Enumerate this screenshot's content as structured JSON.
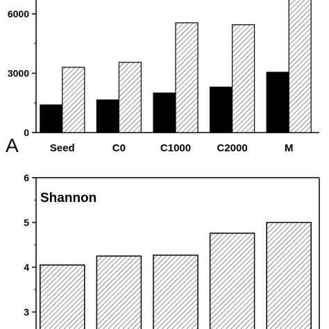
{
  "chart_data": [
    {
      "type": "bar",
      "panel_label": "A",
      "title": "",
      "xlabel": "",
      "ylabel": "",
      "categories": [
        "Seed",
        "C0",
        "C1000",
        "C2000",
        "M"
      ],
      "ylim": [
        0,
        7000
      ],
      "yticks": [
        "0",
        "3000",
        "6000"
      ],
      "series": [
        {
          "values": [
            1400,
            1650,
            2000,
            2300,
            3050
          ],
          "color": "#000000",
          "pattern": "solid"
        },
        {
          "values": [
            3300,
            3550,
            5550,
            5450,
            7000
          ],
          "color": "#ffffff",
          "pattern": "hatched"
        }
      ]
    },
    {
      "type": "bar",
      "title": "Shannon",
      "xlabel": "",
      "ylabel": "",
      "categories": [
        "",
        "",
        "",
        "",
        ""
      ],
      "ylim": [
        2.7,
        6
      ],
      "yticks": [
        "3",
        "4",
        "5",
        "6"
      ],
      "series": [
        {
          "values": [
            4.05,
            4.25,
            4.27,
            4.76,
            5.0
          ],
          "color": "#ffffff",
          "pattern": "hatched"
        }
      ]
    }
  ]
}
